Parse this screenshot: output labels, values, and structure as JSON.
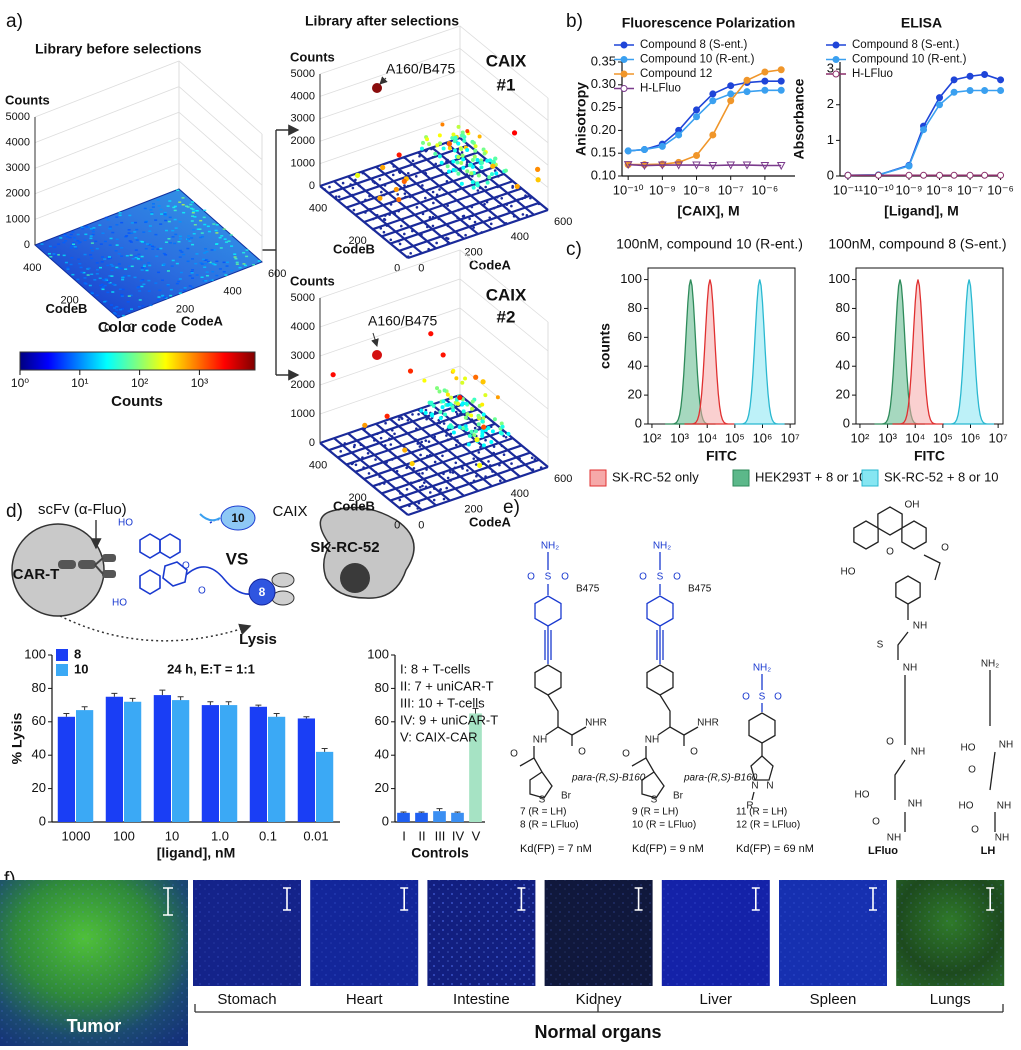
{
  "figure": {
    "panel_labels": [
      "a)",
      "b)",
      "c)",
      "d)",
      "e)",
      "f)"
    ],
    "a": {
      "before_title": "Library before selections",
      "after_title": "Library after selections",
      "axes": {
        "counts": "Counts",
        "codeb": "CodeB",
        "codea": "CodeA",
        "z_ticks": [
          5000,
          4000,
          3000,
          2000,
          1000,
          0
        ],
        "codeb_ticks": [
          400,
          200,
          0
        ],
        "codea_ticks": [
          0,
          200,
          400,
          600
        ]
      },
      "hit": "A160/B475",
      "selections": [
        [
          "CAIX",
          "#1"
        ],
        [
          "CAIX",
          "#2"
        ]
      ],
      "colorbar": {
        "title": "Color code",
        "label": "Counts",
        "lim": [
          1,
          8500
        ],
        "ticks": [
          {
            "value": 1,
            "label": "10⁰"
          },
          {
            "value": 10,
            "label": "10¹"
          },
          {
            "value": 100,
            "label": "10²"
          },
          {
            "value": 1000,
            "label": "10³"
          }
        ]
      }
    },
    "c": {
      "titles": [
        "100nM, compound 10 (R-ent.)",
        "100nM, compound 8 (S-ent.)"
      ],
      "ylabel": "counts",
      "xlabel": "FITC",
      "ylim": [
        0,
        108
      ],
      "yticks": [
        0,
        20,
        40,
        60,
        80,
        100
      ],
      "xlim": [
        72,
        15000000
      ],
      "xticks": [
        {
          "value": 100,
          "label": "10²"
        },
        {
          "value": 1000,
          "label": "10³"
        },
        {
          "value": 10000,
          "label": "10⁴"
        },
        {
          "value": 100000,
          "label": "10⁵"
        },
        {
          "value": 1000000,
          "label": "10⁶"
        },
        {
          "value": 10000000,
          "label": "10⁷"
        }
      ],
      "legend": [
        {
          "name": "SK-RC-52 only",
          "color": "#f6a9a9"
        },
        {
          "name": "HEK293T + 8 or 10",
          "color": "#5cb88a"
        },
        {
          "name": "SK-RC-52 + 8 or 10",
          "color": "#86e6f2"
        }
      ]
    },
    "d": {
      "texts": {
        "scfv": "scFv (α-Fluo)",
        "cart": "CAR-T",
        "vs": "VS",
        "caix": "CAIX",
        "cell": "SK-RC-52",
        "lysis": "Lysis",
        "c10": "10",
        "c8": "8",
        "ho": "HO",
        "o": "O"
      }
    },
    "e": {
      "atoms": {
        "nh2": "NH₂",
        "o": "O",
        "s": "S",
        "nhr": "NHR",
        "nh": "NH",
        "hn": "HN",
        "br": "Br",
        "oh": "OH",
        "ho": "HO",
        "r": "R",
        "n": "N"
      },
      "compounds": [
        {
          "tag": "B475",
          "linker": "para-(R,S)-B160",
          "ids": [
            "7 (R = LH)",
            "8 (R = LFluo)"
          ],
          "kd": "Kd(FP) = 7 nM"
        },
        {
          "tag": "B475",
          "linker": "para-(R,S)-B160",
          "ids": [
            "9 (R = LH)",
            "10 (R = LFluo)"
          ],
          "kd": "Kd(FP) = 9 nM"
        },
        {
          "ids": [
            "11 (R = LH)",
            "12 (R = LFluo)"
          ],
          "kd": "Kd(FP) = 69 nM"
        }
      ],
      "linkers": [
        "LFluo",
        "LH"
      ]
    },
    "f": {
      "tumor": "Tumor",
      "organs": [
        "Stomach",
        "Heart",
        "Intestine",
        "Kidney",
        "Liver",
        "Spleen",
        "Lungs"
      ],
      "group": "Normal organs"
    }
  },
  "chart_data": [
    {
      "type": "line",
      "title": "Fluorescence Polarization",
      "xlabel": "[CAIX], M",
      "ylabel": "Anisotropy",
      "xlog": true,
      "x": [
        1e-10,
        3e-10,
        1e-09,
        3e-09,
        1e-08,
        3e-08,
        1e-07,
        3e-07,
        1e-06,
        3e-06
      ],
      "xlim": [
        6.6e-11,
        7.6e-06
      ],
      "xticks": [
        {
          "value": 1e-10,
          "label": "10⁻¹⁰"
        },
        {
          "value": 1e-09,
          "label": "10⁻⁹"
        },
        {
          "value": 1e-08,
          "label": "10⁻⁸"
        },
        {
          "value": 1e-07,
          "label": "10⁻⁷"
        },
        {
          "value": 1e-06,
          "label": "10⁻⁶"
        }
      ],
      "ylim": [
        0.1,
        0.35
      ],
      "yticks": [
        {
          "value": 0.1,
          "label": "0.10"
        },
        0.15,
        {
          "value": 0.2,
          "label": "0.20"
        },
        0.25,
        {
          "value": 0.3,
          "label": "0.30"
        },
        0.35
      ],
      "series": [
        {
          "name": "Compound 8 (S-ent.)",
          "color": "#1f45d8",
          "marker": "circle",
          "values": [
            0.155,
            0.158,
            0.17,
            0.2,
            0.245,
            0.28,
            0.298,
            0.305,
            0.308,
            0.308
          ]
        },
        {
          "name": "Compound 10 (R-ent.)",
          "color": "#3aa0f0",
          "marker": "circle",
          "values": [
            0.155,
            0.158,
            0.165,
            0.19,
            0.23,
            0.265,
            0.28,
            0.285,
            0.288,
            0.288
          ]
        },
        {
          "name": "Compound 12",
          "color": "#f0962a",
          "marker": "circle",
          "values": [
            0.125,
            0.125,
            0.126,
            0.13,
            0.145,
            0.19,
            0.265,
            0.31,
            0.328,
            0.333
          ]
        },
        {
          "name": "H-LFluo",
          "color": "#7b3b8c",
          "marker": "triangle",
          "values": [
            0.125,
            0.123,
            0.124,
            0.124,
            0.124,
            0.123,
            0.124,
            0.124,
            0.123,
            0.123
          ]
        }
      ]
    },
    {
      "type": "line",
      "title": "ELISA",
      "xlabel": "[Ligand], M",
      "ylabel": "Absorbance",
      "xlog": true,
      "x": [
        1e-11,
        1e-10,
        1e-09,
        3e-09,
        1e-08,
        3e-08,
        1e-07,
        3e-07,
        1e-06
      ],
      "xlim": [
        5.5e-12,
        1.2e-06
      ],
      "xticks": [
        {
          "value": 1e-11,
          "label": "10⁻¹¹"
        },
        {
          "value": 1e-10,
          "label": "10⁻¹⁰"
        },
        {
          "value": 1e-09,
          "label": "10⁻⁹"
        },
        {
          "value": 1e-08,
          "label": "10⁻⁸"
        },
        {
          "value": 1e-07,
          "label": "10⁻⁷"
        },
        {
          "value": 1e-06,
          "label": "10⁻⁶"
        }
      ],
      "ylim": [
        0,
        3.2
      ],
      "yticks": [
        0,
        1,
        2,
        3
      ],
      "series": [
        {
          "name": "Compound 8 (S-ent.)",
          "color": "#1f45d8",
          "marker": "circle",
          "values": [
            0.02,
            0.03,
            0.3,
            1.4,
            2.2,
            2.7,
            2.8,
            2.85,
            2.7
          ]
        },
        {
          "name": "Compound 10 (R-ent.)",
          "color": "#3aa0f0",
          "marker": "circle",
          "values": [
            0.02,
            0.03,
            0.28,
            1.3,
            2.0,
            2.35,
            2.4,
            2.4,
            2.4
          ]
        },
        {
          "name": "H-LFluo",
          "color": "#8b2f6a",
          "marker": "hollow",
          "values": [
            0.02,
            0.02,
            0.02,
            0.02,
            0.02,
            0.02,
            0.02,
            0.02,
            0.02
          ]
        }
      ]
    },
    {
      "type": "bar",
      "title": "24 h, E:T = 1:1",
      "xlabel": "[ligand], nM",
      "ylabel": "% Lysis",
      "categories": [
        "1000",
        "100",
        "10",
        "1.0",
        "0.1",
        "0.01"
      ],
      "ylim": [
        0,
        100
      ],
      "yticks": [
        0,
        20,
        40,
        60,
        80,
        100
      ],
      "series": [
        {
          "name": "8",
          "color": "#1a3ef5",
          "values": [
            63,
            75,
            76,
            70,
            69,
            62
          ],
          "errors": [
            2,
            2,
            3,
            2,
            1,
            1
          ]
        },
        {
          "name": "10",
          "color": "#3ba9f5",
          "values": [
            67,
            72,
            73,
            70,
            63,
            42
          ],
          "errors": [
            2,
            2,
            2,
            2,
            2,
            2
          ]
        }
      ]
    },
    {
      "type": "bar",
      "xlabel": "Controls",
      "categories": [
        "I",
        "II",
        "III",
        "IV",
        "V"
      ],
      "values": [
        5.5,
        5.5,
        6.5,
        5.5,
        65
      ],
      "errors": [
        0.5,
        0.5,
        1.5,
        0.5,
        3
      ],
      "colors": [
        "#1f5ff0",
        "#1f5ff0",
        "#3b8ff2",
        "#3b8ff2",
        "#a6e3c4"
      ],
      "ylim": [
        0,
        100
      ],
      "yticks": [
        0,
        20,
        40,
        60,
        80,
        100
      ],
      "annotations": [
        "I: 8 + T-cells",
        "II: 7 + uniCAR-T",
        "III: 10 + T-cells",
        "IV: 9 + uniCAR-T",
        "V: CAIX-CAR"
      ]
    }
  ]
}
